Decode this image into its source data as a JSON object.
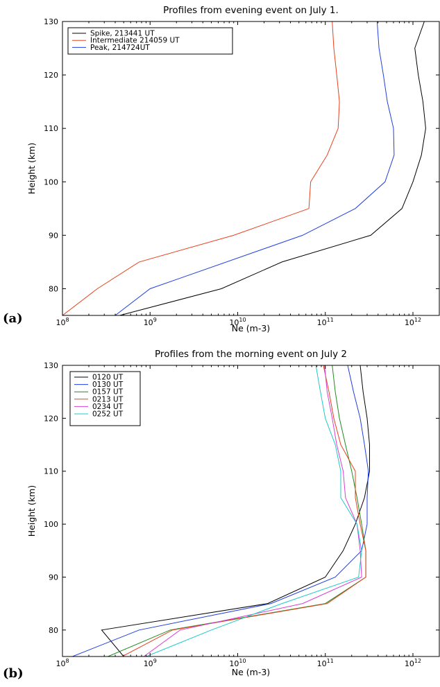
{
  "chart_data": [
    {
      "type": "line",
      "panel_label": "(a)",
      "title": "Profiles from evening event on July 1.",
      "xlabel": "Ne (m-3)",
      "ylabel": "Height (km)",
      "x_scale": "log",
      "xlim": [
        100000000.0,
        2000000000000.0
      ],
      "ylim": [
        75,
        130
      ],
      "x_ticks": [
        100000000.0,
        1000000000.0,
        10000000000.0,
        100000000000.0,
        1000000000000.0
      ],
      "x_tick_labels": [
        {
          "base": "10",
          "exp": "8"
        },
        {
          "base": "10",
          "exp": "9"
        },
        {
          "base": "10",
          "exp": "10"
        },
        {
          "base": "10",
          "exp": "11"
        },
        {
          "base": "10",
          "exp": "12"
        }
      ],
      "y_ticks": [
        80,
        90,
        100,
        110,
        120,
        130
      ],
      "grid": false,
      "legend_position": "top-left",
      "colors": {
        "black": "#000000",
        "red": "#e8401c",
        "blue": "#1f3fe0"
      },
      "series": [
        {
          "name": "Spike, 213441 UT",
          "color": "#000000",
          "x": [
            450000000.0,
            6500000000.0,
            32000000000.0,
            330000000000.0,
            750000000000.0,
            1000000000000.0,
            1250000000000.0,
            1400000000000.0,
            1300000000000.0,
            1150000000000.0,
            1050000000000.0,
            1350000000000.0
          ],
          "y": [
            75,
            80,
            85,
            90,
            95,
            100,
            105,
            110,
            115,
            120,
            125,
            130
          ]
        },
        {
          "name": "Intermediate 214059 UT",
          "color": "#e8401c",
          "x": [
            100000000.0,
            250000000.0,
            750000000.0,
            9000000000.0,
            65000000000.0,
            68000000000.0,
            105000000000.0,
            140000000000.0,
            145000000000.0,
            135000000000.0,
            125000000000.0,
            120000000000.0
          ],
          "y": [
            75,
            80,
            85,
            90,
            95,
            100,
            105,
            110,
            115,
            120,
            125,
            130
          ]
        },
        {
          "name": "Peak, 214724UT",
          "color": "#1f3fe0",
          "x": [
            400000000.0,
            1000000000.0,
            55000000000.0,
            220000000000.0,
            480000000000.0,
            610000000000.0,
            600000000000.0,
            510000000000.0,
            460000000000.0,
            410000000000.0,
            390000000000.0
          ],
          "y": [
            75,
            80,
            90,
            95,
            100,
            105,
            110,
            115,
            120,
            125,
            130
          ]
        }
      ]
    },
    {
      "type": "line",
      "panel_label": "(b)",
      "title": "Profiles from the morning event on July 2",
      "xlabel": "Ne (m-3)",
      "ylabel": "Height (km)",
      "x_scale": "log",
      "xlim": [
        100000000.0,
        2000000000000.0
      ],
      "ylim": [
        75,
        130
      ],
      "x_ticks": [
        100000000.0,
        1000000000.0,
        10000000000.0,
        100000000000.0,
        1000000000000.0
      ],
      "x_tick_labels": [
        {
          "base": "10",
          "exp": "8"
        },
        {
          "base": "10",
          "exp": "9"
        },
        {
          "base": "10",
          "exp": "10"
        },
        {
          "base": "10",
          "exp": "11"
        },
        {
          "base": "10",
          "exp": "12"
        }
      ],
      "y_ticks": [
        80,
        90,
        100,
        110,
        120,
        130
      ],
      "grid": false,
      "legend_position": "top-left",
      "colors": {
        "black": "#000000",
        "blue": "#1f3fe0",
        "green": "#1f8a1f",
        "red": "#e8401c",
        "magenta": "#d63fd6",
        "cyan": "#1fc8c8"
      },
      "series": [
        {
          "name": "0120 UT",
          "color": "#000000",
          "x": [
            500000000.0,
            280000000.0,
            22000000000.0,
            100000000000.0,
            160000000000.0,
            220000000000.0,
            280000000000.0,
            320000000000.0,
            320000000000.0,
            300000000000.0,
            270000000000.0,
            250000000000.0
          ],
          "y": [
            75,
            80,
            85,
            90,
            95,
            100,
            105,
            110,
            115,
            120,
            125,
            130
          ]
        },
        {
          "name": "0130 UT",
          "color": "#1f3fe0",
          "x": [
            130000000.0,
            750000000.0,
            24000000000.0,
            130000000000.0,
            260000000000.0,
            300000000000.0,
            300000000000.0,
            310000000000.0,
            280000000000.0,
            250000000000.0,
            210000000000.0,
            180000000000.0
          ],
          "y": [
            75,
            80,
            85,
            90,
            95,
            100,
            105,
            110,
            115,
            120,
            125,
            130
          ]
        },
        {
          "name": "0157 UT",
          "color": "#1f8a1f",
          "x": [
            330000000.0,
            1700000000.0,
            100000000000.0,
            290000000000.0,
            290000000000.0,
            260000000000.0,
            230000000000.0,
            200000000000.0,
            170000000000.0,
            145000000000.0,
            130000000000.0,
            120000000000.0
          ],
          "y": [
            75,
            80,
            85,
            90,
            95,
            100,
            105,
            110,
            115,
            120,
            125,
            130
          ]
        },
        {
          "name": "0213 UT",
          "color": "#e8401c",
          "x": [
            480000000.0,
            1800000000.0,
            105000000000.0,
            290000000000.0,
            290000000000.0,
            250000000000.0,
            220000000000.0,
            220000000000.0,
            150000000000.0,
            125000000000.0,
            110000000000.0,
            95000000000.0
          ],
          "y": [
            75,
            80,
            85,
            90,
            95,
            100,
            105,
            110,
            115,
            120,
            125,
            130
          ]
        },
        {
          "name": "0234 UT",
          "color": "#d63fd6",
          "x": [
            850000000.0,
            2200000000.0,
            55000000000.0,
            260000000000.0,
            250000000000.0,
            230000000000.0,
            170000000000.0,
            160000000000.0,
            135000000000.0,
            120000000000.0,
            105000000000.0,
            98000000000.0
          ],
          "y": [
            75,
            80,
            85,
            90,
            95,
            100,
            105,
            110,
            115,
            120,
            125,
            130
          ]
        },
        {
          "name": "0252 UT",
          "color": "#1fc8c8",
          "x": [
            900000000.0,
            5000000000.0,
            32000000000.0,
            240000000000.0,
            260000000000.0,
            230000000000.0,
            150000000000.0,
            150000000000.0,
            130000000000.0,
            100000000000.0,
            88000000000.0,
            78000000000.0
          ],
          "y": [
            75,
            80,
            85,
            90,
            95,
            100,
            105,
            110,
            115,
            120,
            125,
            130
          ]
        }
      ]
    }
  ]
}
